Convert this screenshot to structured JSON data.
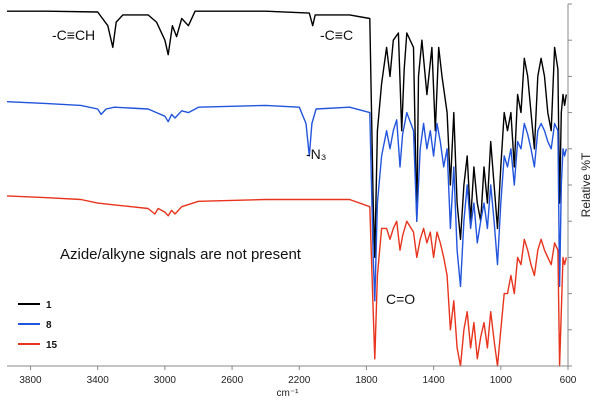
{
  "chart_data": {
    "type": "line",
    "xlabel": "cm⁻¹",
    "ylabel": "Relative %T",
    "x_ticks": [
      3800,
      3400,
      3000,
      2600,
      2200,
      1800,
      1400,
      1000,
      600
    ],
    "xlim": [
      3940,
      600
    ],
    "x_reversed": true,
    "legend": {
      "position": "bottom-left",
      "entries": [
        {
          "label": "1",
          "color": "#000000"
        },
        {
          "label": "8",
          "color": "#2255dd"
        },
        {
          "label": "15",
          "color": "#e8341c"
        }
      ]
    },
    "annotations": [
      {
        "text": "-C≡CH"
      },
      {
        "text": "-C≡C"
      },
      {
        "text": "-N₃"
      },
      {
        "text": "C=O"
      },
      {
        "text": "Azide/alkyne signals are not present"
      }
    ],
    "series": [
      {
        "name": "1",
        "color": "#000000",
        "points": [
          [
            3940,
            0.02
          ],
          [
            3700,
            0.02
          ],
          [
            3400,
            0.022
          ],
          [
            3340,
            0.06
          ],
          [
            3310,
            0.12
          ],
          [
            3290,
            0.05
          ],
          [
            3250,
            0.03
          ],
          [
            3100,
            0.03
          ],
          [
            3050,
            0.05
          ],
          [
            3000,
            0.1
          ],
          [
            2980,
            0.14
          ],
          [
            2955,
            0.06
          ],
          [
            2930,
            0.09
          ],
          [
            2900,
            0.04
          ],
          [
            2860,
            0.06
          ],
          [
            2820,
            0.02
          ],
          [
            2400,
            0.02
          ],
          [
            2140,
            0.025
          ],
          [
            2120,
            0.06
          ],
          [
            2105,
            0.03
          ],
          [
            1900,
            0.03
          ],
          [
            1780,
            0.04
          ],
          [
            1760,
            0.55
          ],
          [
            1750,
            0.7
          ],
          [
            1735,
            0.35
          ],
          [
            1710,
            0.22
          ],
          [
            1680,
            0.12
          ],
          [
            1660,
            0.2
          ],
          [
            1640,
            0.1
          ],
          [
            1610,
            0.08
          ],
          [
            1590,
            0.35
          ],
          [
            1575,
            0.18
          ],
          [
            1560,
            0.08
          ],
          [
            1520,
            0.12
          ],
          [
            1500,
            0.6
          ],
          [
            1490,
            0.2
          ],
          [
            1470,
            0.1
          ],
          [
            1440,
            0.25
          ],
          [
            1410,
            0.12
          ],
          [
            1390,
            0.35
          ],
          [
            1370,
            0.12
          ],
          [
            1350,
            0.2
          ],
          [
            1320,
            0.3
          ],
          [
            1300,
            0.5
          ],
          [
            1280,
            0.3
          ],
          [
            1260,
            0.55
          ],
          [
            1240,
            0.65
          ],
          [
            1220,
            0.5
          ],
          [
            1200,
            0.42
          ],
          [
            1180,
            0.6
          ],
          [
            1160,
            0.45
          ],
          [
            1140,
            0.55
          ],
          [
            1120,
            0.6
          ],
          [
            1100,
            0.45
          ],
          [
            1080,
            0.55
          ],
          [
            1060,
            0.38
          ],
          [
            1040,
            0.5
          ],
          [
            1020,
            0.62
          ],
          [
            1000,
            0.45
          ],
          [
            980,
            0.3
          ],
          [
            960,
            0.35
          ],
          [
            940,
            0.3
          ],
          [
            920,
            0.45
          ],
          [
            900,
            0.25
          ],
          [
            880,
            0.3
          ],
          [
            860,
            0.15
          ],
          [
            840,
            0.2
          ],
          [
            820,
            0.3
          ],
          [
            800,
            0.4
          ],
          [
            780,
            0.2
          ],
          [
            760,
            0.15
          ],
          [
            740,
            0.2
          ],
          [
            720,
            0.3
          ],
          [
            700,
            0.35
          ],
          [
            680,
            0.12
          ],
          [
            660,
            0.18
          ],
          [
            650,
            0.55
          ],
          [
            640,
            0.3
          ],
          [
            630,
            0.25
          ],
          [
            620,
            0.28
          ],
          [
            610,
            0.25
          ]
        ]
      },
      {
        "name": "8",
        "color": "#2255dd",
        "points": [
          [
            3940,
            0.27
          ],
          [
            3700,
            0.275
          ],
          [
            3500,
            0.28
          ],
          [
            3400,
            0.29
          ],
          [
            3380,
            0.305
          ],
          [
            3350,
            0.29
          ],
          [
            3300,
            0.285
          ],
          [
            3100,
            0.29
          ],
          [
            3050,
            0.3
          ],
          [
            3000,
            0.31
          ],
          [
            2980,
            0.325
          ],
          [
            2960,
            0.305
          ],
          [
            2940,
            0.315
          ],
          [
            2900,
            0.295
          ],
          [
            2860,
            0.3
          ],
          [
            2800,
            0.285
          ],
          [
            2400,
            0.28
          ],
          [
            2200,
            0.285
          ],
          [
            2160,
            0.33
          ],
          [
            2140,
            0.42
          ],
          [
            2125,
            0.33
          ],
          [
            2100,
            0.29
          ],
          [
            1900,
            0.285
          ],
          [
            1780,
            0.3
          ],
          [
            1760,
            0.7
          ],
          [
            1750,
            0.82
          ],
          [
            1735,
            0.55
          ],
          [
            1710,
            0.42
          ],
          [
            1680,
            0.35
          ],
          [
            1660,
            0.4
          ],
          [
            1640,
            0.35
          ],
          [
            1620,
            0.32
          ],
          [
            1600,
            0.45
          ],
          [
            1585,
            0.36
          ],
          [
            1560,
            0.3
          ],
          [
            1520,
            0.35
          ],
          [
            1500,
            0.6
          ],
          [
            1480,
            0.4
          ],
          [
            1460,
            0.33
          ],
          [
            1440,
            0.4
          ],
          [
            1420,
            0.35
          ],
          [
            1400,
            0.42
          ],
          [
            1380,
            0.33
          ],
          [
            1360,
            0.38
          ],
          [
            1340,
            0.45
          ],
          [
            1320,
            0.4
          ],
          [
            1300,
            0.62
          ],
          [
            1280,
            0.45
          ],
          [
            1260,
            0.68
          ],
          [
            1240,
            0.78
          ],
          [
            1220,
            0.6
          ],
          [
            1200,
            0.5
          ],
          [
            1180,
            0.62
          ],
          [
            1160,
            0.55
          ],
          [
            1140,
            0.66
          ],
          [
            1120,
            0.6
          ],
          [
            1100,
            0.55
          ],
          [
            1080,
            0.62
          ],
          [
            1060,
            0.5
          ],
          [
            1040,
            0.6
          ],
          [
            1020,
            0.72
          ],
          [
            1000,
            0.55
          ],
          [
            980,
            0.42
          ],
          [
            960,
            0.45
          ],
          [
            940,
            0.4
          ],
          [
            920,
            0.5
          ],
          [
            900,
            0.38
          ],
          [
            880,
            0.4
          ],
          [
            860,
            0.33
          ],
          [
            840,
            0.36
          ],
          [
            820,
            0.4
          ],
          [
            800,
            0.45
          ],
          [
            780,
            0.35
          ],
          [
            760,
            0.33
          ],
          [
            740,
            0.35
          ],
          [
            720,
            0.38
          ],
          [
            700,
            0.4
          ],
          [
            680,
            0.33
          ],
          [
            660,
            0.35
          ],
          [
            650,
            0.78
          ],
          [
            640,
            0.5
          ],
          [
            630,
            0.4
          ],
          [
            620,
            0.42
          ],
          [
            610,
            0.4
          ]
        ]
      },
      {
        "name": "15",
        "color": "#e8341c",
        "points": [
          [
            3940,
            0.53
          ],
          [
            3700,
            0.535
          ],
          [
            3500,
            0.54
          ],
          [
            3400,
            0.55
          ],
          [
            3300,
            0.555
          ],
          [
            3200,
            0.56
          ],
          [
            3100,
            0.565
          ],
          [
            3060,
            0.58
          ],
          [
            3040,
            0.565
          ],
          [
            3000,
            0.575
          ],
          [
            2980,
            0.585
          ],
          [
            2960,
            0.57
          ],
          [
            2940,
            0.58
          ],
          [
            2900,
            0.56
          ],
          [
            2800,
            0.545
          ],
          [
            2400,
            0.54
          ],
          [
            2100,
            0.54
          ],
          [
            1900,
            0.54
          ],
          [
            1780,
            0.56
          ],
          [
            1760,
            0.85
          ],
          [
            1750,
            0.98
          ],
          [
            1735,
            0.75
          ],
          [
            1710,
            0.62
          ],
          [
            1680,
            0.62
          ],
          [
            1660,
            0.65
          ],
          [
            1640,
            0.62
          ],
          [
            1620,
            0.6
          ],
          [
            1600,
            0.68
          ],
          [
            1585,
            0.64
          ],
          [
            1560,
            0.6
          ],
          [
            1520,
            0.63
          ],
          [
            1500,
            0.7
          ],
          [
            1480,
            0.65
          ],
          [
            1460,
            0.62
          ],
          [
            1440,
            0.66
          ],
          [
            1420,
            0.63
          ],
          [
            1400,
            0.7
          ],
          [
            1380,
            0.63
          ],
          [
            1360,
            0.66
          ],
          [
            1340,
            0.7
          ],
          [
            1320,
            0.75
          ],
          [
            1300,
            0.9
          ],
          [
            1280,
            0.82
          ],
          [
            1260,
            0.95
          ],
          [
            1240,
            1.0
          ],
          [
            1220,
            0.9
          ],
          [
            1200,
            0.85
          ],
          [
            1180,
            0.95
          ],
          [
            1160,
            0.88
          ],
          [
            1140,
            0.98
          ],
          [
            1120,
            0.92
          ],
          [
            1100,
            0.88
          ],
          [
            1080,
            0.95
          ],
          [
            1060,
            0.85
          ],
          [
            1040,
            0.93
          ],
          [
            1020,
            1.0
          ],
          [
            1000,
            0.9
          ],
          [
            980,
            0.8
          ],
          [
            960,
            0.8
          ],
          [
            940,
            0.75
          ],
          [
            920,
            0.8
          ],
          [
            900,
            0.7
          ],
          [
            880,
            0.72
          ],
          [
            860,
            0.65
          ],
          [
            840,
            0.68
          ],
          [
            820,
            0.72
          ],
          [
            800,
            0.75
          ],
          [
            780,
            0.68
          ],
          [
            760,
            0.65
          ],
          [
            740,
            0.68
          ],
          [
            720,
            0.7
          ],
          [
            700,
            0.72
          ],
          [
            680,
            0.66
          ],
          [
            660,
            0.68
          ],
          [
            650,
            1.0
          ],
          [
            640,
            0.85
          ],
          [
            630,
            0.7
          ],
          [
            620,
            0.72
          ],
          [
            610,
            0.7
          ]
        ]
      }
    ]
  }
}
